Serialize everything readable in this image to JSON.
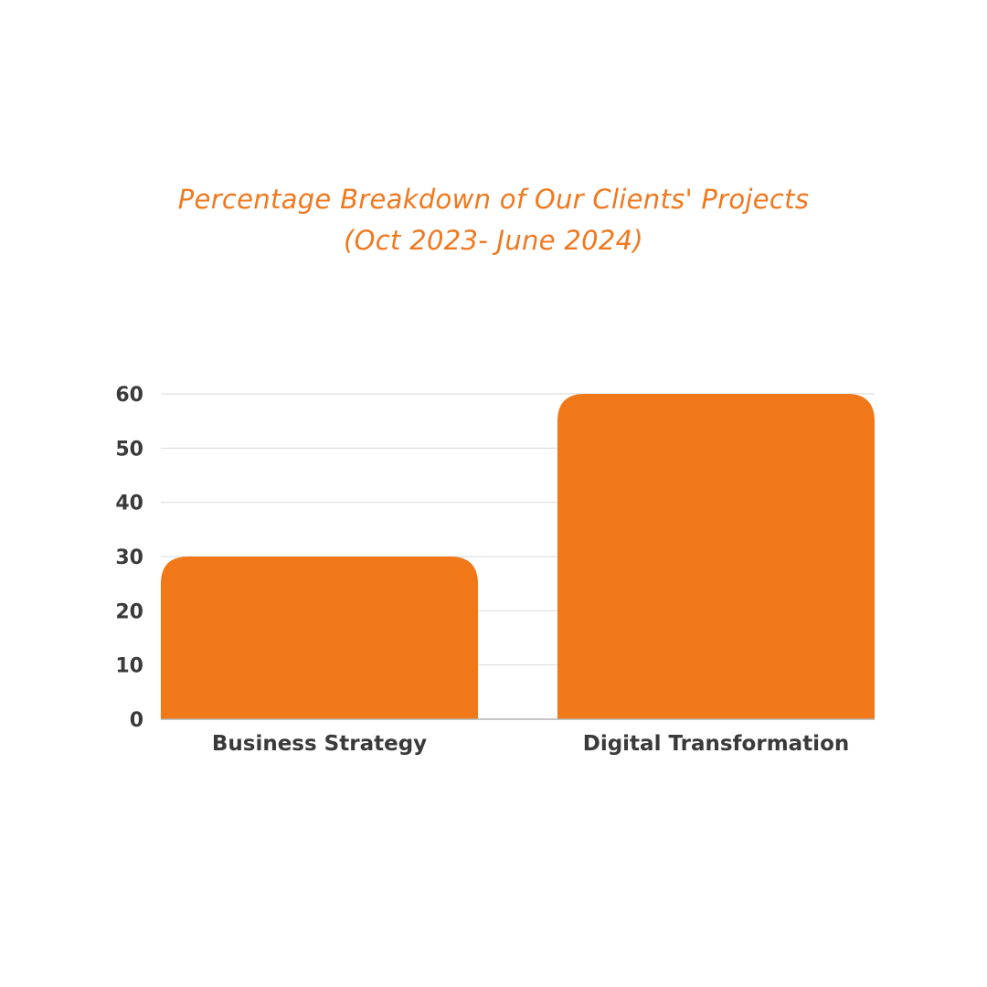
{
  "chart_data": {
    "type": "bar",
    "title": "Percentage Breakdown of Our Clients' Projects",
    "subtitle": "(Oct 2023- June 2024)",
    "categories": [
      "Business Strategy",
      "Digital Transformation"
    ],
    "values": [
      30,
      60
    ],
    "ylim": [
      0,
      60
    ],
    "yticks": [
      0,
      10,
      20,
      30,
      40,
      50,
      60
    ],
    "xlabel": "",
    "ylabel": "",
    "grid": true,
    "legend": "none",
    "colors": {
      "bar": "#f07818",
      "title": "#f0781e",
      "grid": "#d9d9d9",
      "axis": "#b3b3b3",
      "labels": "#3a3a3a"
    }
  }
}
